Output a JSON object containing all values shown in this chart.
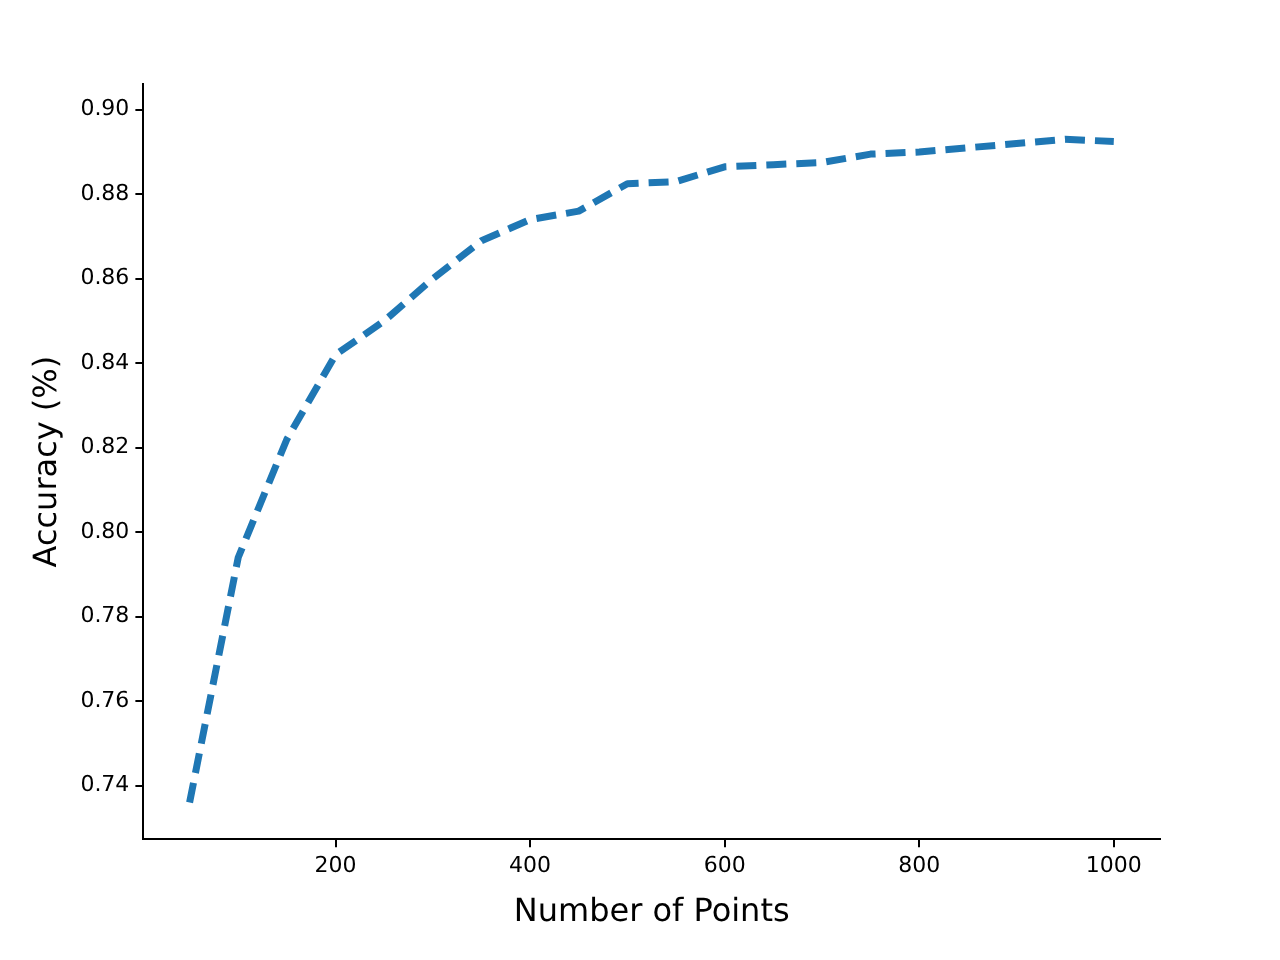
{
  "chart_data": {
    "type": "line",
    "xlabel": "Number of Points",
    "ylabel": "Accuracy (%)",
    "x": [
      50,
      100,
      150,
      200,
      250,
      300,
      350,
      400,
      450,
      500,
      550,
      600,
      650,
      700,
      750,
      800,
      850,
      900,
      950,
      1000
    ],
    "series": [
      {
        "color": "#1f77b4",
        "values": [
          0.736,
          0.794,
          0.822,
          0.842,
          0.85,
          0.86,
          0.869,
          0.874,
          0.876,
          0.8825,
          0.883,
          0.8865,
          0.887,
          0.8875,
          0.8895,
          0.89,
          0.891,
          0.892,
          0.893,
          0.8925
        ]
      }
    ],
    "xlim": [
      2.5,
      1047.5
    ],
    "xticks": [
      200,
      400,
      600,
      800,
      1000
    ],
    "ylim": [
      0.7273,
      0.9061
    ],
    "yticks": [
      0.74,
      0.76,
      0.78,
      {
        "value": 0.8,
        "label": "0.80"
      },
      0.82,
      0.84,
      0.86,
      0.88,
      {
        "value": 0.9,
        "label": "0.90"
      }
    ],
    "grid": false,
    "legend": false,
    "line_style": "dashed",
    "marker": "none"
  }
}
